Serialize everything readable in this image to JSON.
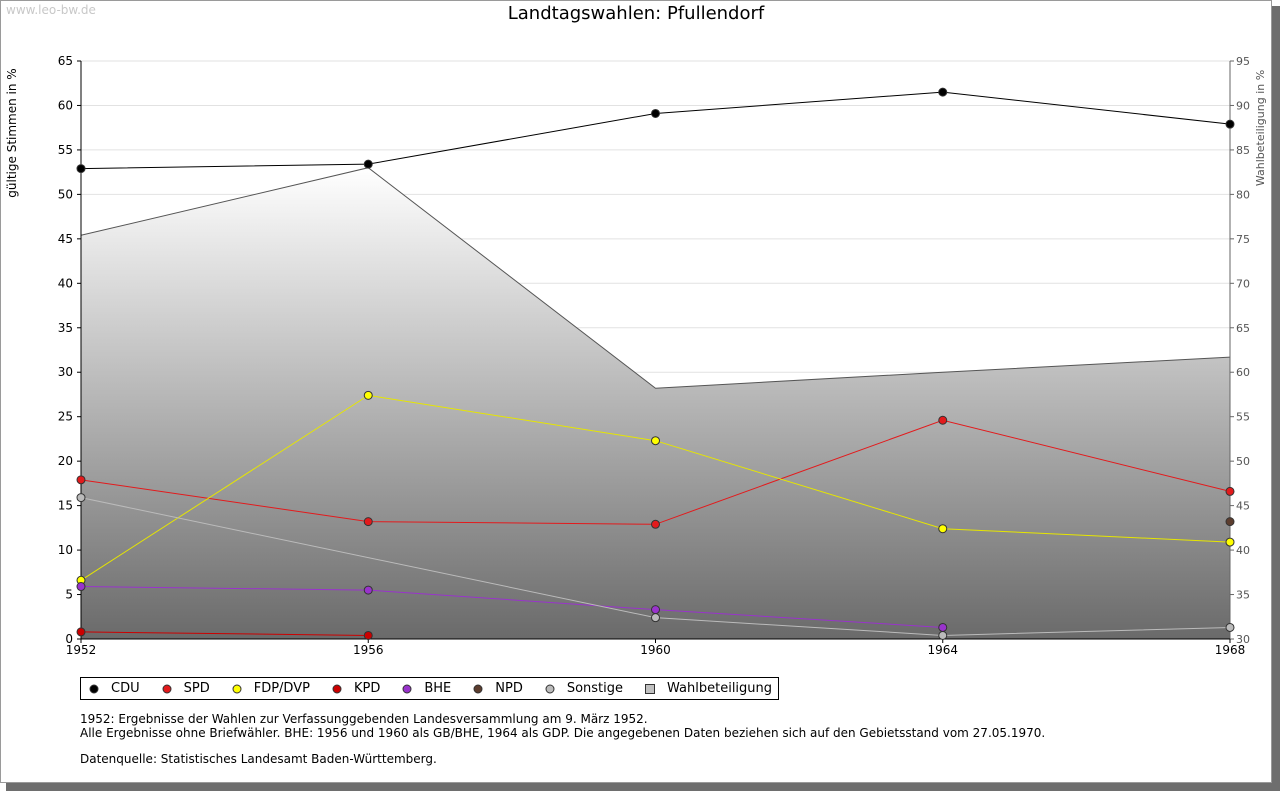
{
  "watermark": "www.leo-bw.de",
  "chart_data": {
    "type": "line",
    "title": "Landtagswahlen: Pfullendorf",
    "categories": [
      "1952",
      "1956",
      "1960",
      "1964",
      "1968"
    ],
    "ylabel": "gültige Stimmen in %",
    "ylabel_right": "Wahlbeteiligung in %",
    "ylim": [
      0,
      65
    ],
    "yticks": [
      0,
      5,
      10,
      15,
      20,
      25,
      30,
      35,
      40,
      45,
      50,
      55,
      60,
      65
    ],
    "ylim_right": [
      30,
      95
    ],
    "yticks_right": [
      30,
      35,
      40,
      45,
      50,
      55,
      60,
      65,
      70,
      75,
      80,
      85,
      90,
      95
    ],
    "turnout": {
      "name": "Wahlbeteiligung",
      "values": [
        75.4,
        83.0,
        58.2,
        60.0,
        61.7
      ],
      "color": "#c0c0c0"
    },
    "series": [
      {
        "name": "CDU",
        "color": "#000000",
        "values": [
          52.9,
          53.4,
          59.1,
          61.5,
          57.9
        ]
      },
      {
        "name": "SPD",
        "color": "#e31a1c",
        "values": [
          17.9,
          13.2,
          12.9,
          24.6,
          16.6
        ]
      },
      {
        "name": "FDP/DVP",
        "color": "#ffff00",
        "values": [
          6.6,
          27.4,
          22.3,
          12.4,
          10.9
        ]
      },
      {
        "name": "KPD",
        "color": "#cc0000",
        "values": [
          0.8,
          0.4,
          null,
          null,
          null
        ]
      },
      {
        "name": "BHE",
        "color": "#9933cc",
        "values": [
          5.9,
          5.5,
          3.3,
          1.3,
          null
        ]
      },
      {
        "name": "NPD",
        "color": "#5c3d2e",
        "values": [
          null,
          null,
          null,
          null,
          13.2
        ]
      },
      {
        "name": "Sonstige",
        "color": "#bbbbbb",
        "values": [
          15.9,
          null,
          2.4,
          0.4,
          1.3
        ]
      }
    ]
  },
  "legend_turnout_color": "#c0c0c0",
  "notes": {
    "line1": "1952: Ergebnisse der Wahlen zur Verfassunggebenden Landesversammlung am 9. März 1952.",
    "line2": "Alle Ergebnisse ohne Briefwähler. BHE: 1956 und 1960 als GB/BHE, 1964 als GDP. Die angegebenen Daten beziehen sich auf den Gebietsstand vom 27.05.1970.",
    "source": "Datenquelle: Statistisches Landesamt Baden-Württemberg."
  }
}
